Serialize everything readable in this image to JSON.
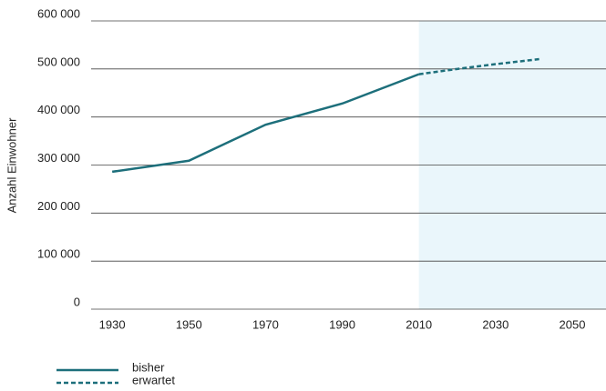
{
  "chart_data": {
    "type": "line",
    "y_label": "Anzahl Einwohner",
    "xlim": [
      1924.5,
      2058.8
    ],
    "ylim": [
      0,
      600000
    ],
    "xticks": [
      1930,
      1950,
      1970,
      1990,
      2010,
      2030,
      2050
    ],
    "yticks": [
      {
        "value": 0,
        "label": "0"
      },
      {
        "value": 100000,
        "label": "100 000"
      },
      {
        "value": 200000,
        "label": "200 000"
      },
      {
        "value": 300000,
        "label": "300 000"
      },
      {
        "value": 400000,
        "label": "400 000"
      },
      {
        "value": 500000,
        "label": "500 000"
      },
      {
        "value": 600000,
        "label": "600 000"
      }
    ],
    "grid": true,
    "shade_from": 2010,
    "shade_color": "#eaf6fb",
    "legend": "bottom-left",
    "series": [
      {
        "name": "bisher",
        "color": "#1d6f7b",
        "dashed": false,
        "x": [
          1930,
          1950,
          1970,
          1990,
          2010
        ],
        "values": [
          286000,
          309000,
          384000,
          428000,
          489000
        ]
      },
      {
        "name": "erwartet",
        "color": "#1d6f7b",
        "dashed": true,
        "x": [
          2010,
          2020,
          2030,
          2042
        ],
        "values": [
          489000,
          500000,
          510000,
          521000
        ]
      }
    ]
  }
}
